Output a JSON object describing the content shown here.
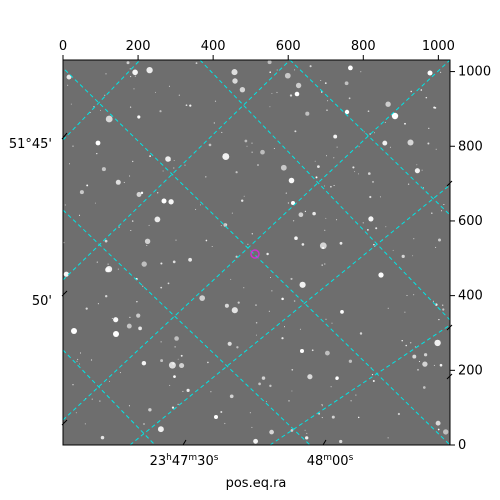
{
  "chart_data": {
    "type": "image",
    "xlabel": "pos.eq.ra",
    "xlim": [
      0,
      1031
    ],
    "ylim": [
      0,
      1031
    ],
    "pixel_ticks": {
      "top": [
        0,
        200,
        400,
        600,
        800,
        1000
      ],
      "right": [
        0,
        200,
        400,
        600,
        800,
        1000
      ]
    },
    "ra_ticks": [
      {
        "h": "23",
        "m": "47",
        "s": "30",
        "label_parts": [
          "23",
          "h",
          "47",
          "m",
          "30",
          "s"
        ]
      },
      {
        "h": "",
        "m": "48",
        "s": "00",
        "label_parts": [
          "",
          "",
          "48",
          "m",
          "00",
          "s"
        ]
      }
    ],
    "dec_ticks": [
      {
        "label": "51°45'"
      },
      {
        "label": "50'"
      }
    ],
    "grid_color": "#00e5e5",
    "marker_color": "#cc33cc",
    "image_background": "#6e6e6e"
  }
}
